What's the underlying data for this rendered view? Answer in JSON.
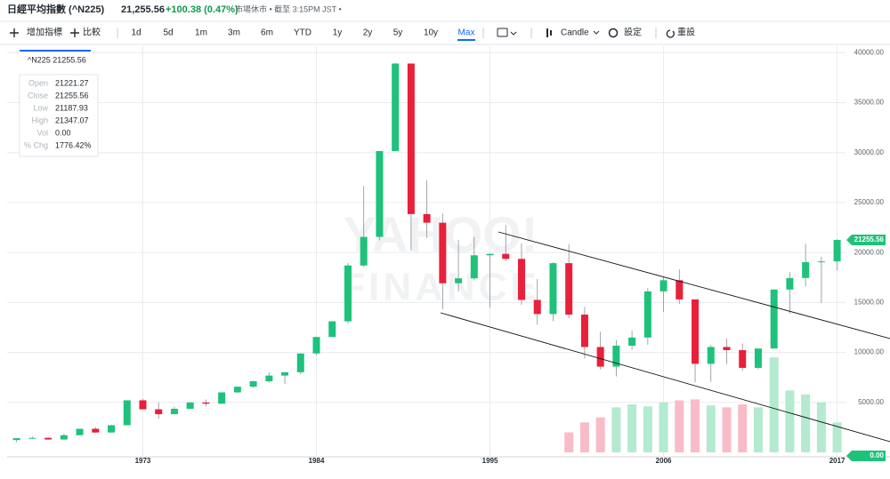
{
  "header": {
    "title": "日經平均指數 (^N225)",
    "price": "21,255.56",
    "change": "+100.38 (0.47%)",
    "status": "市場休市 • 截至 3:15PM JST •"
  },
  "toolbar": {
    "indicators": "增加指標",
    "compare": "比較",
    "ranges": [
      "1d",
      "5d",
      "1m",
      "3m",
      "6m",
      "YTD",
      "1y",
      "2y",
      "5y",
      "10y",
      "Max"
    ],
    "active_range_index": 10,
    "chart_type": "Candle",
    "settings": "設定",
    "reset": "重設"
  },
  "tooltip": {
    "title": "^N225 21255.56",
    "rows": [
      [
        "Open",
        "21221.27"
      ],
      [
        "Close",
        "21255.56"
      ],
      [
        "Low",
        "21187.93"
      ],
      [
        "High",
        "21347.07"
      ],
      [
        "Vol",
        "0.00"
      ],
      [
        "% Chg",
        "1776.42%"
      ]
    ]
  },
  "chart_data": {
    "type": "candlestick",
    "watermark": [
      "YAHOO!",
      "FINANCE"
    ],
    "x": [
      1965,
      1966,
      1967,
      1968,
      1969,
      1970,
      1971,
      1972,
      1973,
      1974,
      1975,
      1976,
      1977,
      1978,
      1979,
      1980,
      1981,
      1982,
      1983,
      1984,
      1985,
      1986,
      1987,
      1988,
      1989,
      1990,
      1991,
      1992,
      1993,
      1994,
      1995,
      1996,
      1997,
      1998,
      1999,
      2000,
      2001,
      2002,
      2003,
      2004,
      2005,
      2006,
      2007,
      2008,
      2009,
      2010,
      2011,
      2012,
      2013,
      2014,
      2015,
      2016,
      2017
    ],
    "open": [
      1230,
      1417,
      1452,
      1284,
      1715,
      2359,
      1987,
      2714,
      5208,
      4307,
      3817,
      4359,
      4991,
      4866,
      6002,
      6570,
      7116,
      7682,
      8017,
      9894,
      11543,
      13113,
      18701,
      21564,
      30159,
      38916,
      23849,
      22984,
      16925,
      17417,
      19723,
      19868,
      19361,
      15259,
      13842,
      18934,
      13786,
      10543,
      8579,
      10677,
      11489,
      16111,
      17226,
      15308,
      8860,
      10546,
      10229,
      8455,
      10395,
      16291,
      17451,
      19034,
      19114
    ],
    "high": [
      1430,
      1588,
      1506,
      1855,
      2359,
      2534,
      2740,
      5207,
      5359,
      5005,
      4564,
      4990,
      5287,
      6002,
      6590,
      7188,
      8019,
      8027,
      9893,
      11577,
      13129,
      18936,
      26646,
      30159,
      38957,
      38713,
      27270,
      23901,
      21281,
      21573,
      19868,
      22750,
      20910,
      17352,
      19036,
      20833,
      14556,
      12081,
      11238,
      12195,
      16445,
      17563,
      18300,
      15156,
      10767,
      11408,
      10891,
      10395,
      16320,
      18030,
      20868,
      19592,
      21347
    ],
    "low": [
      1020,
      1364,
      1250,
      1266,
      1716,
      1929,
      1981,
      2712,
      4306,
      3355,
      3812,
      4352,
      4598,
      4867,
      5955,
      6475,
      6956,
      6849,
      7803,
      9703,
      11545,
      12881,
      18544,
      21217,
      30183,
      20222,
      21456,
      14309,
      16078,
      17242,
      14485,
      19161,
      14775,
      12787,
      13122,
      13423,
      9382,
      8303,
      7603,
      10299,
      10770,
      14045,
      14837,
      6995,
      7055,
      8824,
      8160,
      8295,
      10486,
      13885,
      16593,
      14952,
      18225
    ],
    "close": [
      1417,
      1452,
      1284,
      1715,
      2359,
      1987,
      2714,
      5208,
      4307,
      3817,
      4359,
      4991,
      4866,
      6002,
      6570,
      7116,
      7682,
      8017,
      9894,
      11543,
      13113,
      18701,
      21564,
      30159,
      38916,
      23849,
      22984,
      16925,
      17417,
      19723,
      19868,
      19361,
      15259,
      13842,
      18934,
      13786,
      10543,
      8579,
      10677,
      11489,
      16111,
      17226,
      15308,
      8860,
      10546,
      10229,
      8455,
      10395,
      16291,
      17451,
      19034,
      19114,
      21256
    ],
    "volume": [
      null,
      null,
      null,
      null,
      null,
      null,
      null,
      null,
      null,
      null,
      null,
      null,
      null,
      null,
      null,
      null,
      null,
      null,
      null,
      null,
      null,
      null,
      null,
      null,
      null,
      null,
      null,
      null,
      null,
      null,
      null,
      null,
      null,
      null,
      null,
      2000,
      3000,
      3500,
      4500,
      4800,
      4600,
      5000,
      5200,
      5300,
      4700,
      4500,
      4800,
      4500,
      9500,
      6200,
      5800,
      5000,
      3000
    ],
    "up_color": "#1ec27b",
    "down_color": "#e8203a",
    "up_volume_color": "#b3ead0",
    "down_volume_color": "#f8bcc7",
    "xlim": [
      1964.4,
      2017.53
    ],
    "xticks": [
      1973,
      1984,
      1995,
      2006,
      2017
    ],
    "ylim": [
      0,
      40650
    ],
    "yticks": [
      {
        "value": 5000,
        "label": "5000.00"
      },
      {
        "value": 10000,
        "label": "10000.00"
      },
      {
        "value": 15000,
        "label": "15000.00"
      },
      {
        "value": 20000,
        "label": "20000.00"
      },
      {
        "value": 25000,
        "label": "25000.00"
      },
      {
        "value": 30000,
        "label": "30000.00"
      },
      {
        "value": 35000,
        "label": "35000.00"
      },
      {
        "value": 40000,
        "label": "40000.00"
      }
    ],
    "grid": true
  }
}
